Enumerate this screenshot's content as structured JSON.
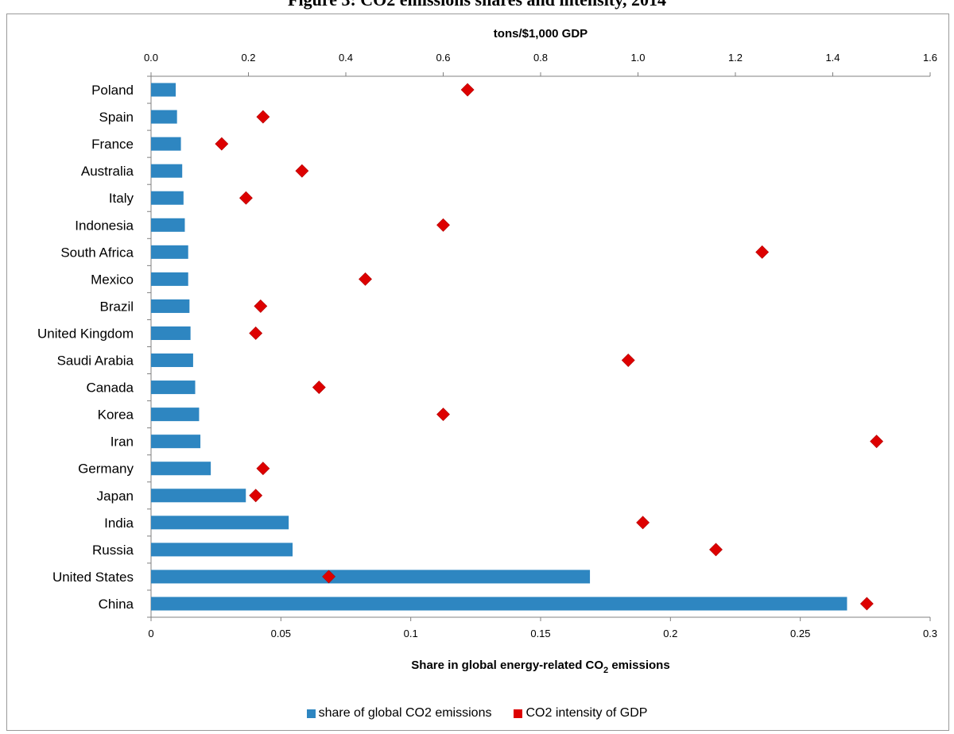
{
  "page": {
    "title_partial": "Figure 3: CO2 emissions shares and intensity, 2014"
  },
  "colors": {
    "bar": "#2E86C1",
    "marker": "#DD0000",
    "axis": "#808080"
  },
  "chart_data": {
    "type": "bar",
    "orientation": "horizontal",
    "categories": [
      "Poland",
      "Spain",
      "France",
      "Australia",
      "Italy",
      "Indonesia",
      "South Africa",
      "Mexico",
      "Brazil",
      "United Kingdom",
      "Saudi Arabia",
      "Canada",
      "Korea",
      "Iran",
      "Germany",
      "Japan",
      "India",
      "Russia",
      "United States",
      "China"
    ],
    "series": [
      {
        "name": "share of global CO2 emissions",
        "axis": "bottom",
        "values": [
          0.0095,
          0.01,
          0.0115,
          0.012,
          0.0125,
          0.013,
          0.0143,
          0.0143,
          0.0148,
          0.0152,
          0.0162,
          0.017,
          0.0185,
          0.019,
          0.023,
          0.0365,
          0.053,
          0.0545,
          0.169,
          0.268
        ]
      },
      {
        "name": "CO2 intensity of GDP",
        "axis": "top",
        "values": [
          0.65,
          0.23,
          0.145,
          0.31,
          0.195,
          0.6,
          1.255,
          0.44,
          0.225,
          0.215,
          0.98,
          0.345,
          0.6,
          1.49,
          0.23,
          0.215,
          1.01,
          1.16,
          0.365,
          1.47
        ]
      }
    ],
    "bottom_axis": {
      "label": "Share in global energy-related CO",
      "label_sub": "2",
      "label_end": " emissions",
      "range": [
        0,
        0.3
      ],
      "ticks": [
        "0",
        "0.05",
        "0.1",
        "0.15",
        "0.2",
        "0.25",
        "0.3"
      ]
    },
    "top_axis": {
      "label": "tons/$1,000 GDP",
      "range": [
        0,
        1.6
      ],
      "ticks": [
        "0.0",
        "0.2",
        "0.4",
        "0.6",
        "0.8",
        "1.0",
        "1.2",
        "1.4",
        "1.6"
      ]
    },
    "grid": false,
    "legend_position": "bottom"
  }
}
